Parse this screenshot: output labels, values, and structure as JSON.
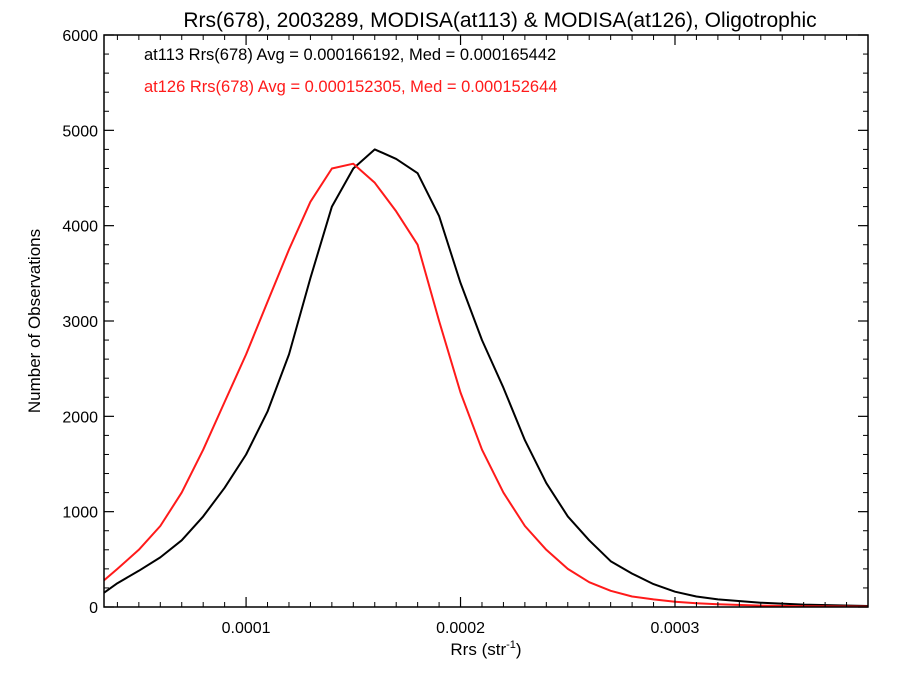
{
  "chart_data": {
    "type": "line",
    "title": "Rrs(678), 2003289, MODISA(at113) & MODISA(at126), Oligotrophic",
    "xlabel": "Rrs (str",
    "xlabel_superscript": "-1",
    "xlabel_suffix": ")",
    "ylabel": "Number of Observations",
    "xlim": [
      3.375e-05,
      0.00039
    ],
    "ylim": [
      0,
      6000
    ],
    "x_ticks": [
      0.0001,
      0.0002,
      0.0003
    ],
    "x_tick_labels": [
      "0.0001",
      "0.0002",
      "0.0003"
    ],
    "y_ticks": [
      0,
      1000,
      2000,
      3000,
      4000,
      5000,
      6000
    ],
    "y_tick_labels": [
      "0",
      "1000",
      "2000",
      "3000",
      "4000",
      "5000",
      "6000"
    ],
    "grid": false,
    "annotations": [
      {
        "text": "at113 Rrs(678) Avg = 0.000166192, Med = 0.000165442",
        "color": "#000000"
      },
      {
        "text": "at126 Rrs(678) Avg = 0.000152305, Med = 0.000152644",
        "color": "#ff1a1a"
      }
    ],
    "series": [
      {
        "color": "#000000",
        "x": [
          3.38e-05,
          4e-05,
          5e-05,
          6e-05,
          7e-05,
          8e-05,
          9e-05,
          0.0001,
          0.00011,
          0.00012,
          0.00013,
          0.00014,
          0.00015,
          0.00016,
          0.00017,
          0.00018,
          0.00019,
          0.0002,
          0.00021,
          0.00022,
          0.00023,
          0.00024,
          0.00025,
          0.00026,
          0.00027,
          0.00028,
          0.00029,
          0.0003,
          0.00031,
          0.00032,
          0.00034,
          0.00036,
          0.00039
        ],
        "y": [
          150,
          250,
          380,
          520,
          700,
          950,
          1250,
          1600,
          2050,
          2650,
          3450,
          4200,
          4600,
          4800,
          4700,
          4550,
          4100,
          3400,
          2800,
          2300,
          1750,
          1300,
          950,
          700,
          480,
          350,
          240,
          160,
          110,
          80,
          45,
          25,
          10
        ]
      },
      {
        "color": "#ff1a1a",
        "x": [
          3.38e-05,
          4e-05,
          5e-05,
          6e-05,
          7e-05,
          8e-05,
          9e-05,
          0.0001,
          0.00011,
          0.00012,
          0.00013,
          0.00014,
          0.00015,
          0.00016,
          0.00017,
          0.00018,
          0.00019,
          0.0002,
          0.00021,
          0.00022,
          0.00023,
          0.00024,
          0.00025,
          0.00026,
          0.00027,
          0.00028,
          0.00029,
          0.0003,
          0.00031,
          0.00032,
          0.00034,
          0.00036,
          0.00039
        ],
        "y": [
          280,
          400,
          600,
          850,
          1200,
          1650,
          2150,
          2650,
          3200,
          3750,
          4250,
          4600,
          4650,
          4450,
          4150,
          3800,
          3000,
          2250,
          1650,
          1200,
          850,
          600,
          400,
          260,
          170,
          110,
          80,
          55,
          40,
          28,
          15,
          8,
          4
        ]
      }
    ]
  }
}
